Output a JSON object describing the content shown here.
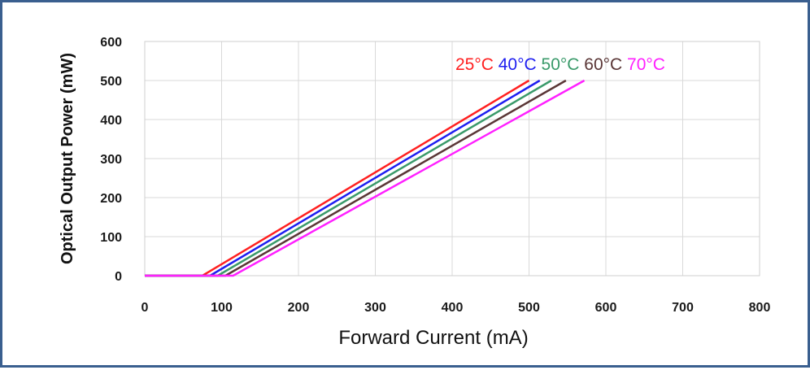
{
  "chart_data": {
    "type": "line",
    "title": "",
    "xlabel": "Forward Current (mA)",
    "ylabel": "Optical Output Power (mW)",
    "xlim": [
      0,
      800
    ],
    "ylim": [
      0,
      600
    ],
    "x_ticks": [
      0,
      100,
      200,
      300,
      400,
      500,
      600,
      700,
      800
    ],
    "y_ticks": [
      0,
      100,
      200,
      300,
      400,
      500,
      600
    ],
    "grid": true,
    "legend_position": "top-right (inline labels)",
    "series": [
      {
        "name": "25°C",
        "color": "#ff2020",
        "x": [
          0,
          75,
          500
        ],
        "y": [
          0,
          0,
          500
        ]
      },
      {
        "name": "40°C",
        "color": "#1e1ef0",
        "x": [
          0,
          85,
          514
        ],
        "y": [
          0,
          0,
          500
        ]
      },
      {
        "name": "50°C",
        "color": "#3a9a6a",
        "x": [
          0,
          95,
          529
        ],
        "y": [
          0,
          0,
          500
        ]
      },
      {
        "name": "60°C",
        "color": "#5a3636",
        "x": [
          0,
          105,
          548
        ],
        "y": [
          0,
          0,
          500
        ]
      },
      {
        "name": "70°C",
        "color": "#ff20ff",
        "x": [
          0,
          115,
          572
        ],
        "y": [
          0,
          0,
          500
        ]
      }
    ]
  }
}
